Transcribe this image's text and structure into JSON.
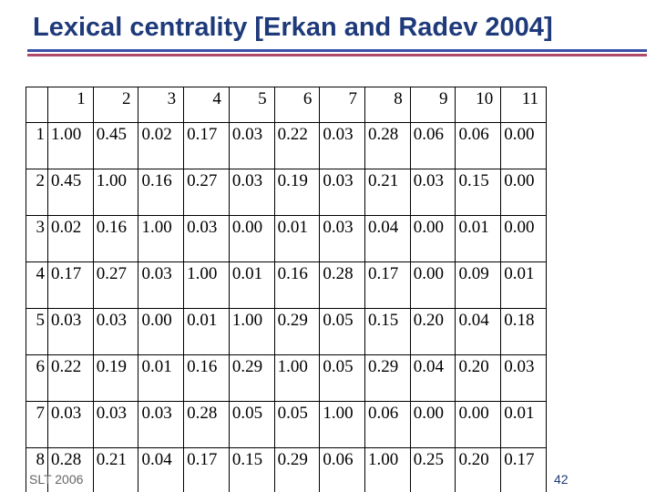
{
  "title": "Lexical centrality [Erkan and Radev 2004]",
  "table": {
    "header": [
      "1",
      "2",
      "3",
      "4",
      "5",
      "6",
      "7",
      "8",
      "9",
      "10",
      "11"
    ],
    "rows": [
      {
        "label": "1",
        "cells": [
          "1.00",
          "0.45",
          "0.02",
          "0.17",
          "0.03",
          "0.22",
          "0.03",
          "0.28",
          "0.06",
          "0.06",
          "0.00"
        ]
      },
      {
        "label": "2",
        "cells": [
          "0.45",
          "1.00",
          "0.16",
          "0.27",
          "0.03",
          "0.19",
          "0.03",
          "0.21",
          "0.03",
          "0.15",
          "0.00"
        ]
      },
      {
        "label": "3",
        "cells": [
          "0.02",
          "0.16",
          "1.00",
          "0.03",
          "0.00",
          "0.01",
          "0.03",
          "0.04",
          "0.00",
          "0.01",
          "0.00"
        ]
      },
      {
        "label": "4",
        "cells": [
          "0.17",
          "0.27",
          "0.03",
          "1.00",
          "0.01",
          "0.16",
          "0.28",
          "0.17",
          "0.00",
          "0.09",
          "0.01"
        ]
      },
      {
        "label": "5",
        "cells": [
          "0.03",
          "0.03",
          "0.00",
          "0.01",
          "1.00",
          "0.29",
          "0.05",
          "0.15",
          "0.20",
          "0.04",
          "0.18"
        ]
      },
      {
        "label": "6",
        "cells": [
          "0.22",
          "0.19",
          "0.01",
          "0.16",
          "0.29",
          "1.00",
          "0.05",
          "0.29",
          "0.04",
          "0.20",
          "0.03"
        ]
      },
      {
        "label": "7",
        "cells": [
          "0.03",
          "0.03",
          "0.03",
          "0.28",
          "0.05",
          "0.05",
          "1.00",
          "0.06",
          "0.00",
          "0.00",
          "0.01"
        ]
      },
      {
        "label": "8",
        "cells": [
          "0.28",
          "0.21",
          "0.04",
          "0.17",
          "0.15",
          "0.29",
          "0.06",
          "1.00",
          "0.25",
          "0.20",
          "0.17"
        ]
      }
    ]
  },
  "footer": {
    "left": "SLT 2006",
    "page": "42"
  }
}
